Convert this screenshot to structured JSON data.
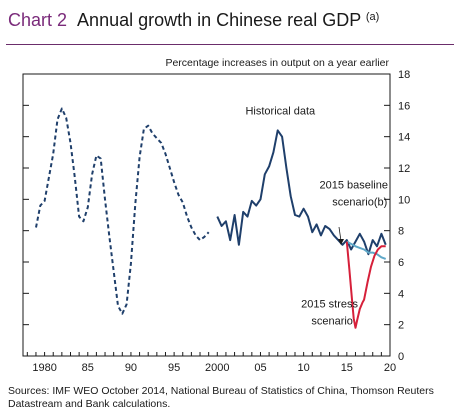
{
  "header": {
    "chart_label": "Chart 2",
    "title": "Annual growth in Chinese real GDP",
    "title_note": "(a)"
  },
  "colors": {
    "accent": "#7a2a7a",
    "historical": "#1f3f6b",
    "baseline": "#5fa8c8",
    "stress": "#d6203a"
  },
  "footer": {
    "sources": "Sources: IMF WEO October 2014, National Bureau of Statistics of China, Thomson Reuters Datastream and Bank calculations."
  },
  "chart_data": {
    "type": "line",
    "title": "Annual growth in Chinese real GDP(a)",
    "ylabel": "Percentage increases in output on a year earlier",
    "xlabel": "",
    "xlim": [
      1977.5,
      2020
    ],
    "ylim": [
      0,
      18
    ],
    "x_ticks": [
      "1980",
      "85",
      "90",
      "95",
      "2000",
      "05",
      "10",
      "15",
      "20"
    ],
    "x_tick_values": [
      1980,
      1985,
      1990,
      1995,
      2000,
      2005,
      2010,
      2015,
      2020
    ],
    "y_ticks": [
      "0",
      "2",
      "4",
      "6",
      "8",
      "10",
      "12",
      "14",
      "16",
      "18"
    ],
    "y_tick_values": [
      0,
      2,
      4,
      6,
      8,
      10,
      12,
      14,
      16,
      18
    ],
    "y_axis_side": "right",
    "grid": false,
    "series": [
      {
        "name": "Historical data",
        "style": "dashed",
        "points": [
          [
            1979.0,
            8.2
          ],
          [
            1979.5,
            9.6
          ],
          [
            1980.0,
            9.9
          ],
          [
            1980.5,
            11.4
          ],
          [
            1981.0,
            12.9
          ],
          [
            1981.5,
            15.1
          ],
          [
            1982.0,
            15.8
          ],
          [
            1982.5,
            15.2
          ],
          [
            1983.0,
            13.6
          ],
          [
            1983.5,
            11.4
          ],
          [
            1984.0,
            8.9
          ],
          [
            1984.5,
            8.6
          ],
          [
            1985.0,
            9.5
          ],
          [
            1985.5,
            11.6
          ],
          [
            1986.0,
            12.8
          ],
          [
            1986.5,
            12.6
          ],
          [
            1987.0,
            10.0
          ],
          [
            1987.5,
            7.6
          ],
          [
            1988.0,
            5.4
          ],
          [
            1988.5,
            3.2
          ],
          [
            1989.0,
            2.7
          ],
          [
            1989.5,
            3.3
          ],
          [
            1990.0,
            5.9
          ],
          [
            1990.5,
            9.7
          ],
          [
            1991.0,
            12.7
          ],
          [
            1991.5,
            14.5
          ],
          [
            1992.0,
            14.7
          ],
          [
            1992.5,
            14.2
          ],
          [
            1993.0,
            13.9
          ],
          [
            1993.5,
            13.6
          ],
          [
            1994.0,
            12.9
          ],
          [
            1994.5,
            12.0
          ],
          [
            1995.0,
            11.1
          ],
          [
            1995.5,
            10.3
          ],
          [
            1996.0,
            9.8
          ],
          [
            1996.5,
            8.9
          ],
          [
            1997.0,
            8.2
          ],
          [
            1997.5,
            7.7
          ],
          [
            1998.0,
            7.4
          ],
          [
            1998.5,
            7.6
          ],
          [
            1999.0,
            7.9
          ]
        ]
      },
      {
        "name": "Historical data",
        "style": "solid",
        "points": [
          [
            2000.0,
            8.9
          ],
          [
            2000.5,
            8.3
          ],
          [
            2001.0,
            8.6
          ],
          [
            2001.5,
            7.4
          ],
          [
            2002.0,
            9.0
          ],
          [
            2002.5,
            7.1
          ],
          [
            2003.0,
            9.2
          ],
          [
            2003.5,
            8.9
          ],
          [
            2004.0,
            9.9
          ],
          [
            2004.5,
            9.6
          ],
          [
            2005.0,
            10.0
          ],
          [
            2005.5,
            11.6
          ],
          [
            2006.0,
            12.1
          ],
          [
            2006.5,
            13.0
          ],
          [
            2007.0,
            14.4
          ],
          [
            2007.5,
            14.0
          ],
          [
            2008.0,
            12.0
          ],
          [
            2008.5,
            10.2
          ],
          [
            2009.0,
            9.0
          ],
          [
            2009.5,
            8.9
          ],
          [
            2010.0,
            9.4
          ],
          [
            2010.5,
            8.9
          ],
          [
            2011.0,
            7.9
          ],
          [
            2011.5,
            8.4
          ],
          [
            2012.0,
            7.7
          ],
          [
            2012.5,
            8.3
          ],
          [
            2013.0,
            8.1
          ],
          [
            2013.5,
            7.7
          ],
          [
            2014.0,
            7.4
          ],
          [
            2014.5,
            7.1
          ],
          [
            2015.0,
            7.4
          ],
          [
            2015.5,
            6.8
          ],
          [
            2016.0,
            7.3
          ],
          [
            2016.5,
            7.8
          ],
          [
            2017.0,
            7.3
          ],
          [
            2017.5,
            6.5
          ],
          [
            2018.0,
            7.4
          ],
          [
            2018.5,
            7.0
          ],
          [
            2019.0,
            7.8
          ],
          [
            2019.5,
            7.1
          ]
        ]
      },
      {
        "name": "2015 baseline scenario(b)",
        "style": "solid",
        "points": [
          [
            2015.0,
            7.3
          ],
          [
            2016.0,
            7.0
          ],
          [
            2016.5,
            6.9
          ],
          [
            2017.0,
            6.8
          ],
          [
            2017.5,
            6.6
          ],
          [
            2018.0,
            6.6
          ],
          [
            2018.5,
            6.5
          ],
          [
            2019.0,
            6.3
          ],
          [
            2019.5,
            6.2
          ]
        ]
      },
      {
        "name": "2015 stress scenario",
        "style": "solid",
        "points": [
          [
            2015.0,
            7.3
          ],
          [
            2015.3,
            5.5
          ],
          [
            2015.6,
            3.6
          ],
          [
            2015.8,
            2.4
          ],
          [
            2016.0,
            1.8
          ],
          [
            2016.2,
            2.3
          ],
          [
            2016.5,
            3.0
          ],
          [
            2016.8,
            3.4
          ],
          [
            2017.0,
            3.6
          ],
          [
            2017.4,
            4.7
          ],
          [
            2017.8,
            5.7
          ],
          [
            2018.2,
            6.4
          ],
          [
            2018.6,
            6.8
          ],
          [
            2019.0,
            7.0
          ],
          [
            2019.5,
            7.0
          ]
        ]
      }
    ],
    "annotations": [
      {
        "text": "Historical data",
        "x": 2007.3,
        "y": 15.4
      },
      {
        "text": "2015 baseline",
        "x": 2015.8,
        "y": 10.7
      },
      {
        "text": "scenario(b)",
        "x": 2016.5,
        "y": 9.6
      },
      {
        "text": "2015 stress",
        "x": 2013.0,
        "y": 3.1
      },
      {
        "text": "scenario",
        "x": 2013.3,
        "y": 2.0
      }
    ]
  }
}
